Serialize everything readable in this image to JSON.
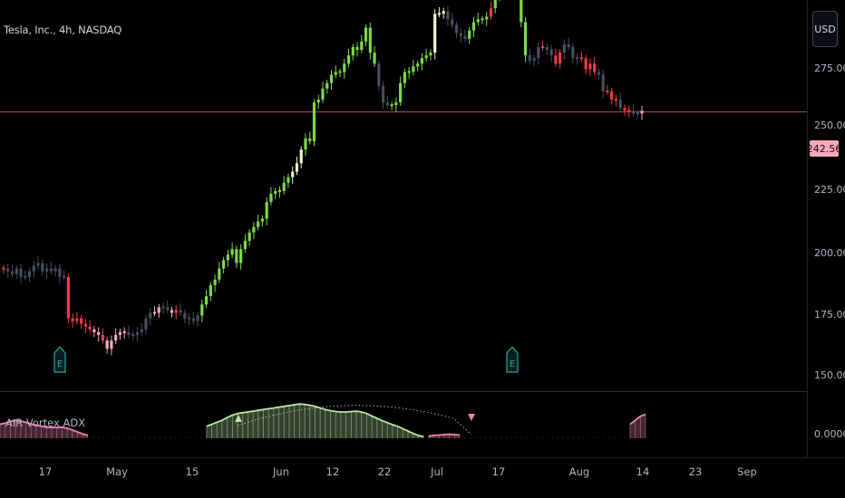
{
  "title": "Tesla, Inc., 4h, NASDAQ",
  "currency_button": "USD",
  "indicator_name": "AIR Vortex ADX",
  "last_price": "242.56",
  "y_axis_labels": [
    "275.00",
    "250.00",
    "225.00",
    "200.00",
    "175.00",
    "150.00"
  ],
  "indicator_axis_label": "0.0000",
  "x_axis_labels": [
    "17",
    "May",
    "15",
    "Jun",
    "12",
    "22",
    "Jul",
    "17",
    "Aug",
    "14",
    "23",
    "Sep"
  ],
  "earnings_marker": "E",
  "colors": {
    "background": "#000000",
    "strong_bull": "#7cd94a",
    "weak_bull": "#e8f5c8",
    "neutral": "#4a4d63",
    "weak_bear": "#f4a6c3",
    "strong_bear": "#ef3a4a",
    "price_line": "#b84d63",
    "indicator_green": "#b9e8a4",
    "indicator_pink": "#f087b3",
    "earnings": "#26a69a"
  },
  "chart_data": {
    "type": "candlestick",
    "symbol": "Tesla, Inc.",
    "interval": "4h",
    "exchange": "NASDAQ",
    "currency": "USD",
    "last_price": 242.56,
    "ylim": [
      143,
      283
    ],
    "closes": [
      186,
      185,
      184,
      186,
      183,
      183,
      185,
      187,
      188,
      185,
      186,
      185,
      186,
      183,
      183,
      168,
      167,
      168,
      166,
      165,
      164,
      163,
      162,
      160,
      157,
      160,
      162,
      163,
      163,
      162,
      162,
      163,
      164,
      168,
      170,
      170,
      172,
      172,
      171,
      170,
      171,
      170,
      168,
      168,
      167,
      169,
      173,
      176,
      180,
      182,
      186,
      189,
      191,
      193,
      188,
      193,
      196,
      199,
      201,
      203,
      204,
      210,
      213,
      214,
      214,
      217,
      219,
      221,
      224,
      229,
      233,
      232,
      246,
      247,
      251,
      253,
      256,
      257,
      257,
      260,
      263,
      266,
      265,
      268,
      273,
      264,
      260,
      252,
      246,
      245,
      245,
      246,
      253,
      257,
      257,
      259,
      260,
      262,
      263,
      264,
      278,
      278,
      279,
      276,
      274,
      271,
      270,
      269,
      272,
      275,
      276,
      276,
      277,
      280,
      285,
      288,
      287,
      290,
      293,
      291,
      275,
      263,
      261,
      262,
      266,
      266,
      265,
      263,
      260,
      264,
      267,
      266,
      262,
      262,
      262,
      258,
      260,
      257,
      256,
      250,
      250,
      247,
      247,
      244,
      243,
      243,
      242,
      242,
      243
    ],
    "classes": [
      "D",
      "N",
      "N",
      "N",
      "N",
      "N",
      "N",
      "N",
      "N",
      "N",
      "N",
      "N",
      "N",
      "N",
      "N",
      "D",
      "D",
      "D",
      "D",
      "D",
      "D",
      "W",
      "W",
      "D",
      "W",
      "W",
      "W",
      "W",
      "W",
      "N",
      "N",
      "N",
      "N",
      "N",
      "N",
      "W",
      "W",
      "N",
      "N",
      "W",
      "D",
      "N",
      "N",
      "N",
      "N",
      "N",
      "G",
      "G",
      "G",
      "G",
      "G",
      "G",
      "G",
      "G",
      "G",
      "G",
      "G",
      "G",
      "G",
      "G",
      "G",
      "G",
      "G",
      "G",
      "G",
      "G",
      "G",
      "L",
      "L",
      "L",
      "G",
      "G",
      "G",
      "G",
      "G",
      "G",
      "G",
      "G",
      "G",
      "G",
      "G",
      "G",
      "G",
      "G",
      "G",
      "G",
      "G",
      "N",
      "N",
      "N",
      "G",
      "G",
      "G",
      "G",
      "G",
      "G",
      "G",
      "G",
      "G",
      "G",
      "L",
      "L",
      "L",
      "N",
      "N",
      "N",
      "N",
      "N",
      "G",
      "G",
      "G",
      "G",
      "G",
      "D",
      "G",
      "G",
      "G",
      "G",
      "G",
      "G",
      "G",
      "G",
      "N",
      "N",
      "N",
      "D",
      "N",
      "N",
      "D",
      "D",
      "N",
      "N",
      "N",
      "N",
      "D",
      "D",
      "D",
      "D",
      "N",
      "N",
      "D",
      "D",
      "D",
      "N",
      "D",
      "D",
      "N",
      "N",
      "W"
    ],
    "indicator": {
      "name": "AIR Vortex ADX",
      "axis_label": "0.0000",
      "ylim": [
        0,
        1
      ],
      "segments": [
        {
          "color": "pink",
          "values": [
            0.35,
            0.38,
            0.42,
            0.45,
            0.43,
            0.4,
            0.36,
            0.33,
            0.3,
            0.28,
            0.27,
            0.27,
            0.28,
            0.25,
            0.21,
            0.16,
            0.11,
            0.07
          ]
        },
        {
          "color": "neutral",
          "values": [
            0.03,
            0.03,
            0.03,
            0.03,
            0.03,
            0.03,
            0.03,
            0.03,
            0.03,
            0.03,
            0.03,
            0.03,
            0.03,
            0.03,
            0.03,
            0.03,
            0.03,
            0.03,
            0.03,
            0.03,
            0.03,
            0.03
          ]
        },
        {
          "color": "green",
          "values": [
            0.3,
            0.35,
            0.4,
            0.45,
            0.52,
            0.58,
            0.62,
            0.64,
            0.66,
            0.68,
            0.7,
            0.72,
            0.74,
            0.76,
            0.78,
            0.8,
            0.82,
            0.84,
            0.86,
            0.85,
            0.83,
            0.8,
            0.76,
            0.72,
            0.69,
            0.67,
            0.66,
            0.66,
            0.67,
            0.68,
            0.66,
            0.62,
            0.56,
            0.5,
            0.44,
            0.39,
            0.34,
            0.3,
            0.24,
            0.18,
            0.12,
            0.07,
            0.04
          ]
        },
        {
          "color": "pink",
          "values": [
            0.05,
            0.07,
            0.08,
            0.09,
            0.1,
            0.09,
            0.08
          ]
        },
        {
          "color": "neutral",
          "values": [
            0.03,
            0.03,
            0.03,
            0.03,
            0.03,
            0.03,
            0.03,
            0.03,
            0.03,
            0.03,
            0.03,
            0.03,
            0.03,
            0.03,
            0.03,
            0.03,
            0.03,
            0.03,
            0.03,
            0.03,
            0.03,
            0.03,
            0.03,
            0.03,
            0.03,
            0.03,
            0.03,
            0.03,
            0.03,
            0.03,
            0.03,
            0.03
          ]
        },
        {
          "color": "pink",
          "values": [
            0.35,
            0.45,
            0.55,
            0.6
          ]
        }
      ]
    }
  }
}
